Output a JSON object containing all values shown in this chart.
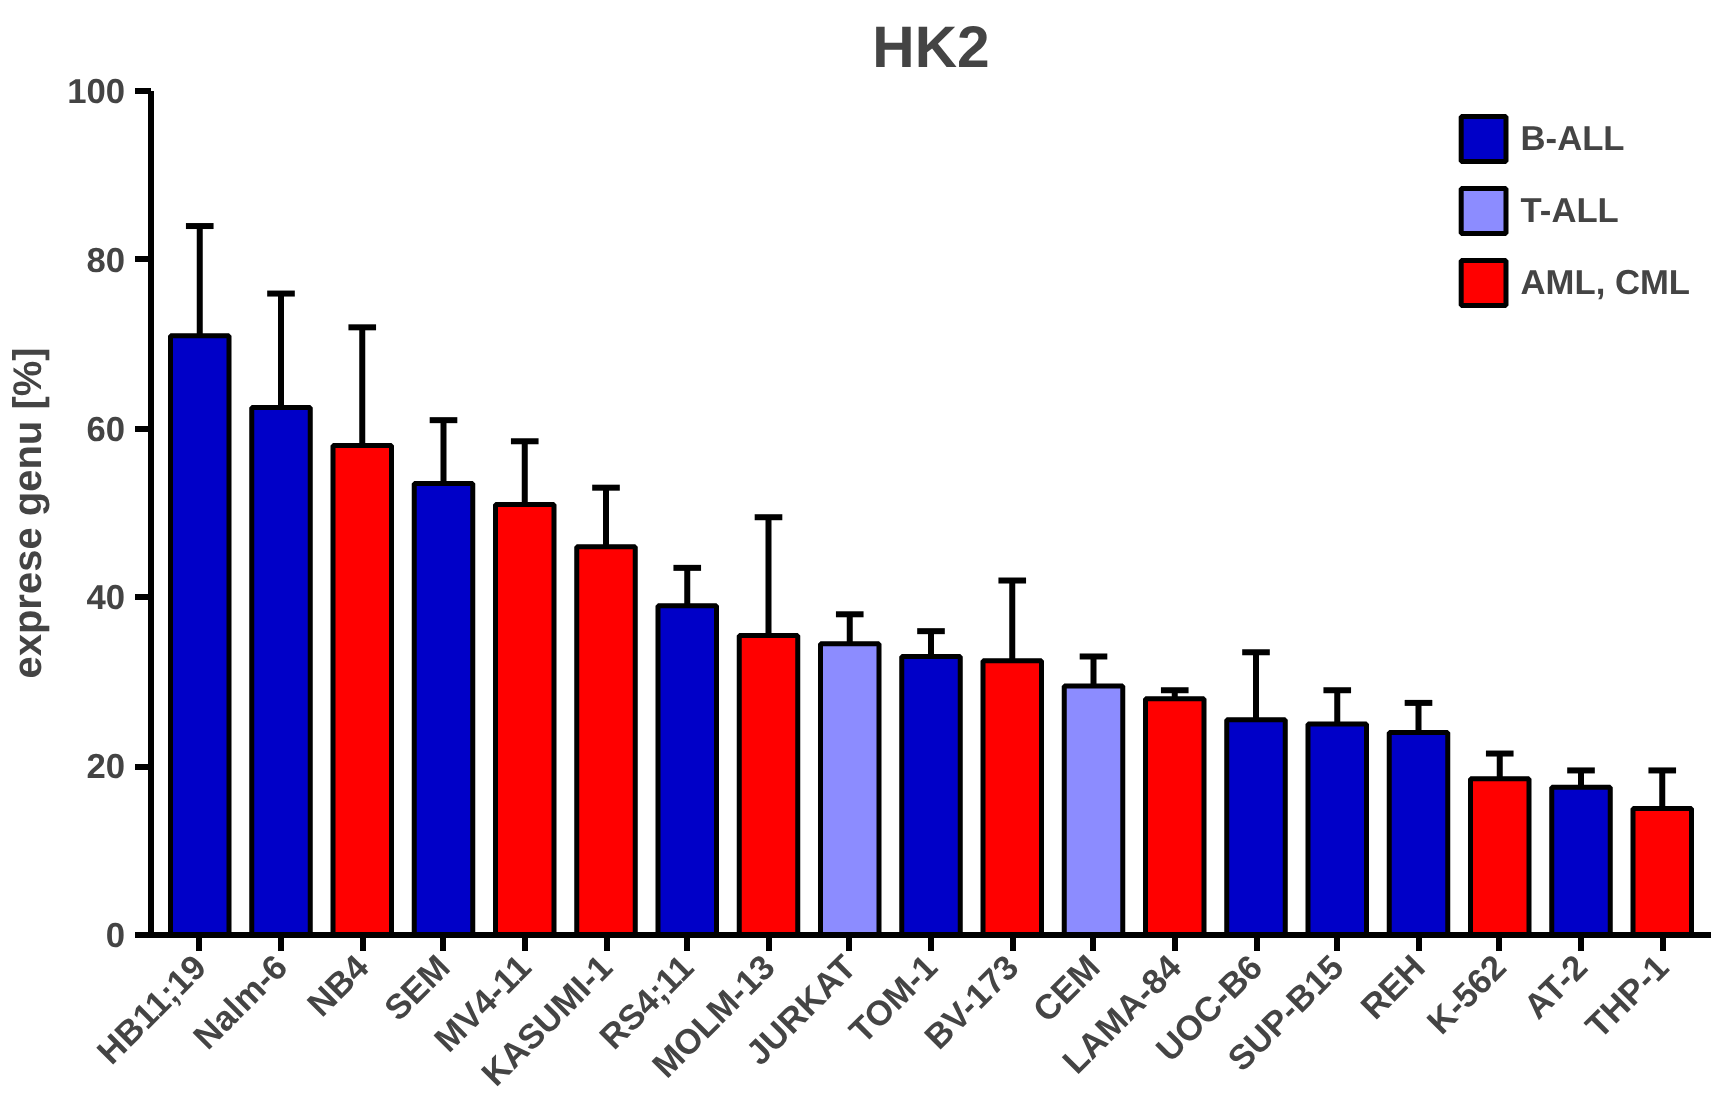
{
  "chart_data": {
    "type": "bar",
    "title": "HK2",
    "ylabel": "exprese genu [%]",
    "categories": [
      "HB11;19",
      "Nalm-6",
      "NB4",
      "SEM",
      "MV4-11",
      "KASUMI-1",
      "RS4;11",
      "MOLM-13",
      "JURKAT",
      "TOM-1",
      "BV-173",
      "CEM",
      "LAMA-84",
      "UOC-B6",
      "SUP-B15",
      "REH",
      "K-562",
      "AT-2",
      "THP-1"
    ],
    "series": [
      {
        "name": "B-ALL",
        "color": "#0000c8",
        "values": [
          71,
          62.5,
          null,
          53.5,
          null,
          null,
          39,
          null,
          null,
          33,
          null,
          null,
          null,
          25.5,
          25,
          24,
          null,
          17.5,
          null
        ],
        "errors": [
          [
            71,
            84
          ],
          [
            62.5,
            76
          ],
          null,
          [
            53.5,
            61
          ],
          null,
          null,
          [
            39,
            43.5
          ],
          null,
          null,
          [
            33,
            36
          ],
          null,
          null,
          null,
          [
            25.5,
            33.5
          ],
          [
            25,
            29
          ],
          [
            24,
            27.5
          ],
          null,
          [
            17.5,
            19.5
          ],
          null
        ]
      },
      {
        "name": "T-ALL",
        "color": "#8c8cff",
        "values": [
          null,
          null,
          null,
          null,
          null,
          null,
          null,
          null,
          34.5,
          null,
          null,
          29.5,
          null,
          null,
          null,
          null,
          null,
          null,
          null
        ],
        "errors": [
          null,
          null,
          null,
          null,
          null,
          null,
          null,
          null,
          [
            34.5,
            38
          ],
          null,
          null,
          [
            29.5,
            33
          ],
          null,
          null,
          null,
          null,
          null,
          null,
          null
        ]
      },
      {
        "name": "AML, CML",
        "color": "#ff0000",
        "values": [
          null,
          null,
          58,
          null,
          51,
          46,
          null,
          35.5,
          null,
          null,
          32.5,
          null,
          28,
          null,
          null,
          null,
          18.5,
          null,
          15
        ],
        "errors": [
          null,
          null,
          [
            58,
            72
          ],
          null,
          [
            51,
            58.5
          ],
          [
            46,
            53
          ],
          null,
          [
            35.5,
            49.5
          ],
          null,
          null,
          [
            32.5,
            42
          ],
          null,
          [
            28,
            29
          ],
          null,
          null,
          null,
          [
            18.5,
            21.5
          ],
          null,
          [
            15,
            19.5
          ]
        ]
      }
    ],
    "ylim": [
      0,
      100
    ],
    "yticks": [
      0,
      20,
      40,
      60,
      80,
      100
    ],
    "grid": false,
    "legend": "top right"
  }
}
